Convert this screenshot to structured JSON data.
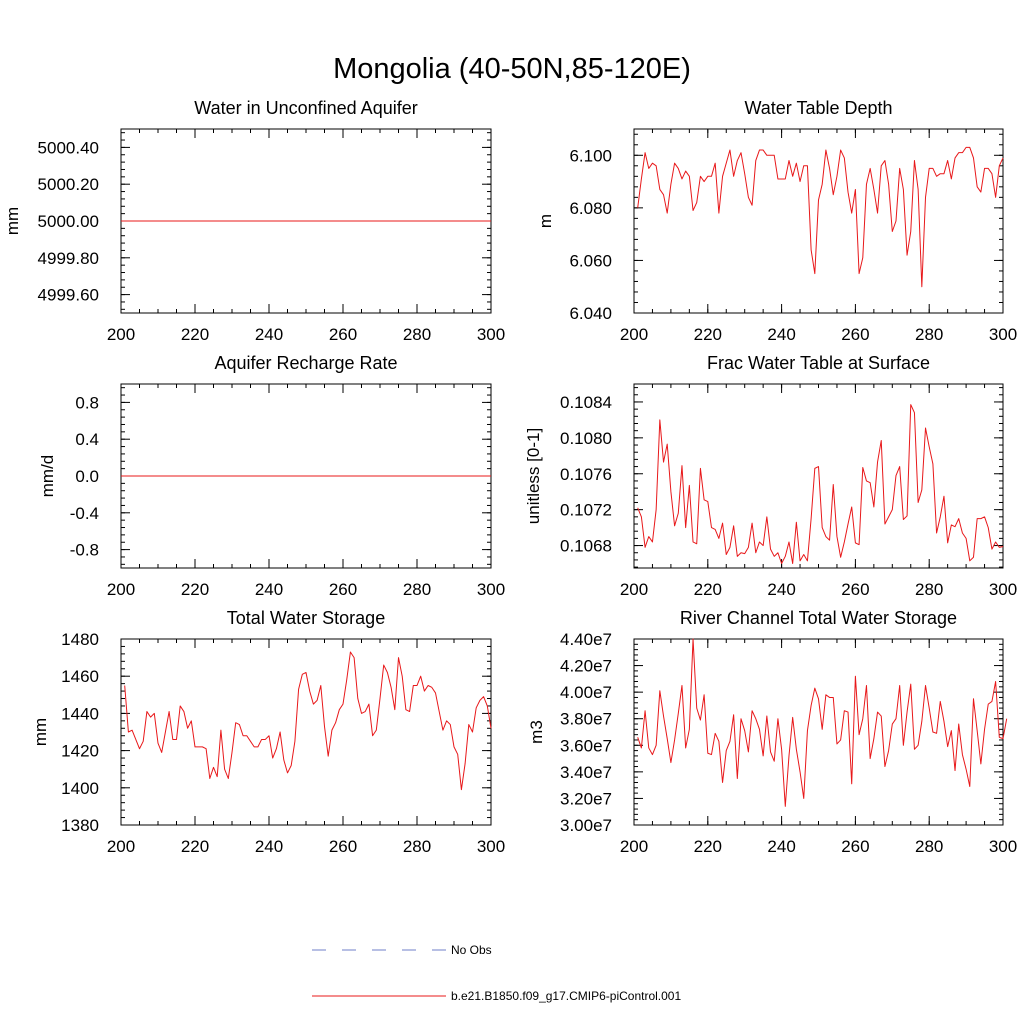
{
  "figure": {
    "title": "Mongolia (40-50N,85-120E)"
  },
  "legend": [
    {
      "label": "No Obs",
      "color": "#6f7fc9",
      "style": "dashed"
    },
    {
      "label": "b.e21.B1850.f09_g17.CMIP6-piControl.001",
      "color": "#e8181a",
      "style": "solid"
    }
  ],
  "chart_data": [
    {
      "type": "line",
      "title": "Water in Unconfined Aquifer",
      "xlabel": "",
      "ylabel": "mm",
      "xlim": [
        200,
        300
      ],
      "ylim": [
        4999.5,
        5000.5
      ],
      "xticks": [
        200,
        220,
        240,
        260,
        280,
        300
      ],
      "xtick_labels": [
        "200",
        "220",
        "240",
        "260",
        "280",
        "300"
      ],
      "yticks": [
        4999.6,
        4999.8,
        5000.0,
        5000.2,
        5000.4
      ],
      "ytick_labels": [
        "4999.60",
        "4999.80",
        "5000.00",
        "5000.20",
        "5000.40"
      ],
      "series": [
        {
          "name": "b.e21.B1850.f09_g17.CMIP6-piControl.001",
          "color": "#e8181a",
          "x": [
            200,
            300
          ],
          "values": [
            5000.0,
            5000.0
          ]
        }
      ]
    },
    {
      "type": "line",
      "title": "Water Table Depth",
      "xlabel": "",
      "ylabel": "m",
      "xlim": [
        200,
        300
      ],
      "ylim": [
        6.04,
        6.11
      ],
      "xticks": [
        200,
        220,
        240,
        260,
        280,
        300
      ],
      "xtick_labels": [
        "200",
        "220",
        "240",
        "260",
        "280",
        "300"
      ],
      "yticks": [
        6.04,
        6.06,
        6.08,
        6.1
      ],
      "ytick_labels": [
        "6.040",
        "6.060",
        "6.080",
        "6.100"
      ],
      "series": [
        {
          "name": "b.e21.B1850.f09_g17.CMIP6-piControl.001",
          "color": "#e8181a",
          "x_start": 201,
          "values": [
            6.08,
            6.091,
            6.101,
            6.095,
            6.097,
            6.096,
            6.087,
            6.085,
            6.078,
            6.089,
            6.097,
            6.095,
            6.091,
            6.094,
            6.092,
            6.079,
            6.082,
            6.092,
            6.09,
            6.092,
            6.092,
            6.097,
            6.078,
            6.092,
            6.097,
            6.102,
            6.092,
            6.098,
            6.101,
            6.093,
            6.084,
            6.081,
            6.098,
            6.102,
            6.102,
            6.1,
            6.1,
            6.1,
            6.091,
            6.091,
            6.091,
            6.098,
            6.092,
            6.097,
            6.09,
            6.096,
            6.096,
            6.064,
            6.055,
            6.083,
            6.089,
            6.102,
            6.095,
            6.085,
            6.092,
            6.102,
            6.099,
            6.086,
            6.078,
            6.087,
            6.055,
            6.061,
            6.089,
            6.095,
            6.087,
            6.078,
            6.096,
            6.098,
            6.089,
            6.071,
            6.075,
            6.095,
            6.087,
            6.062,
            6.071,
            6.098,
            6.087,
            6.05,
            6.084,
            6.095,
            6.095,
            6.092,
            6.093,
            6.093,
            6.098,
            6.091,
            6.099,
            6.101,
            6.101,
            6.103,
            6.103,
            6.099,
            6.088,
            6.086,
            6.095,
            6.095,
            6.093,
            6.084,
            6.096,
            6.099
          ]
        }
      ]
    },
    {
      "type": "line",
      "title": "Aquifer Recharge Rate",
      "xlabel": "",
      "ylabel": "mm/d",
      "xlim": [
        200,
        300
      ],
      "ylim": [
        -1.0,
        1.0
      ],
      "xticks": [
        200,
        220,
        240,
        260,
        280,
        300
      ],
      "xtick_labels": [
        "200",
        "220",
        "240",
        "260",
        "280",
        "300"
      ],
      "yticks": [
        -0.8,
        -0.4,
        0.0,
        0.4,
        0.8
      ],
      "ytick_labels": [
        "-0.8",
        "-0.4",
        "0.0",
        "0.4",
        "0.8"
      ],
      "series": [
        {
          "name": "b.e21.B1850.f09_g17.CMIP6-piControl.001",
          "color": "#e8181a",
          "x": [
            200,
            300
          ],
          "values": [
            0.0,
            0.0
          ]
        }
      ]
    },
    {
      "type": "line",
      "title": "Frac Water Table at Surface",
      "xlabel": "",
      "ylabel": "unitless [0-1]",
      "xlim": [
        200,
        300
      ],
      "ylim": [
        0.10655,
        0.1086
      ],
      "xticks": [
        200,
        220,
        240,
        260,
        280,
        300
      ],
      "xtick_labels": [
        "200",
        "220",
        "240",
        "260",
        "280",
        "300"
      ],
      "yticks": [
        0.1068,
        0.1072,
        0.1076,
        0.108,
        0.1084
      ],
      "ytick_labels": [
        "0.1068",
        "0.1072",
        "0.1076",
        "0.1080",
        "0.1084"
      ],
      "series": [
        {
          "name": "b.e21.B1850.f09_g17.CMIP6-piControl.001",
          "color": "#e8181a",
          "x_start": 201,
          "values": [
            0.10722,
            0.10712,
            0.10678,
            0.1069,
            0.10684,
            0.1072,
            0.1082,
            0.10773,
            0.10793,
            0.1074,
            0.10702,
            0.10716,
            0.10769,
            0.107,
            0.10747,
            0.10684,
            0.10682,
            0.10766,
            0.10731,
            0.10729,
            0.107,
            0.10698,
            0.10688,
            0.10705,
            0.1067,
            0.10678,
            0.10702,
            0.10668,
            0.10672,
            0.10671,
            0.10678,
            0.10705,
            0.10672,
            0.10684,
            0.1068,
            0.10712,
            0.10676,
            0.10668,
            0.10672,
            0.1066,
            0.10668,
            0.10684,
            0.1066,
            0.10706,
            0.10663,
            0.1067,
            0.10663,
            0.1071,
            0.10766,
            0.10768,
            0.107,
            0.1069,
            0.10686,
            0.10748,
            0.1069,
            0.10667,
            0.10684,
            0.10704,
            0.10723,
            0.10683,
            0.10681,
            0.10767,
            0.10752,
            0.1075,
            0.10723,
            0.10773,
            0.10797,
            0.10704,
            0.10712,
            0.1072,
            0.10758,
            0.10768,
            0.10709,
            0.10713,
            0.10837,
            0.10828,
            0.10728,
            0.10742,
            0.10811,
            0.1079,
            0.10771,
            0.10694,
            0.10712,
            0.10735,
            0.10683,
            0.10703,
            0.10701,
            0.1071,
            0.10694,
            0.10688,
            0.10663,
            0.10667,
            0.1071,
            0.1071,
            0.10712,
            0.107,
            0.10676,
            0.10684,
            0.10678,
            0.10679
          ]
        }
      ]
    },
    {
      "type": "line",
      "title": "Total Water Storage",
      "xlabel": "",
      "ylabel": "mm",
      "xlim": [
        200,
        300
      ],
      "ylim": [
        1380,
        1480
      ],
      "xticks": [
        200,
        220,
        240,
        260,
        280,
        300
      ],
      "xtick_labels": [
        "200",
        "220",
        "240",
        "260",
        "280",
        "300"
      ],
      "yticks": [
        1380,
        1400,
        1420,
        1440,
        1460,
        1480
      ],
      "ytick_labels": [
        "1380",
        "1400",
        "1420",
        "1440",
        "1460",
        "1480"
      ],
      "series": [
        {
          "name": "b.e21.B1850.f09_g17.CMIP6-piControl.001",
          "color": "#e8181a",
          "x_start": 201,
          "values": [
            1455,
            1430,
            1431,
            1426,
            1421,
            1425,
            1441,
            1438,
            1440,
            1424,
            1419,
            1430,
            1441,
            1426,
            1426,
            1444,
            1441,
            1432,
            1436,
            1422,
            1422,
            1422,
            1421,
            1405,
            1411,
            1406,
            1431,
            1410,
            1405,
            1419,
            1435,
            1434,
            1428,
            1428,
            1425,
            1422,
            1422,
            1426,
            1426,
            1428,
            1416,
            1421,
            1430,
            1415,
            1408,
            1412,
            1425,
            1453,
            1461,
            1462,
            1452,
            1445,
            1447,
            1455,
            1433,
            1417,
            1431,
            1435,
            1442,
            1445,
            1458,
            1473,
            1470,
            1448,
            1440,
            1441,
            1445,
            1428,
            1431,
            1448,
            1466,
            1462,
            1454,
            1442,
            1470,
            1460,
            1442,
            1441,
            1455,
            1455,
            1460,
            1452,
            1455,
            1454,
            1451,
            1441,
            1431,
            1436,
            1434,
            1422,
            1418,
            1399,
            1413,
            1434,
            1430,
            1443,
            1447,
            1449,
            1444,
            1432
          ]
        }
      ]
    },
    {
      "type": "line",
      "title": "River Channel Total Water Storage",
      "xlabel": "",
      "ylabel": "m3",
      "xlim": [
        200,
        300
      ],
      "ylim": [
        30000000.0,
        44000000.0
      ],
      "xticks": [
        200,
        220,
        240,
        260,
        280,
        300
      ],
      "xtick_labels": [
        "200",
        "220",
        "240",
        "260",
        "280",
        "300"
      ],
      "yticks": [
        30000000.0,
        32000000.0,
        34000000.0,
        36000000.0,
        38000000.0,
        40000000.0,
        42000000.0,
        44000000.0
      ],
      "ytick_labels": [
        "3.00e7",
        "3.20e7",
        "3.40e7",
        "3.60e7",
        "3.80e7",
        "4.00e7",
        "4.20e7",
        "4.40e7"
      ],
      "series": [
        {
          "name": "b.e21.B1850.f09_g17.CMIP6-piControl.001",
          "color": "#e8181a",
          "x_start": 201,
          "values": [
            36600000.0,
            35800000.0,
            38600000.0,
            35800000.0,
            35300000.0,
            36000000.0,
            40100000.0,
            38200000.0,
            36500000.0,
            34700000.0,
            36400000.0,
            38400000.0,
            40500000.0,
            35800000.0,
            37200000.0,
            44000000.0,
            38800000.0,
            37900000.0,
            39800000.0,
            35400000.0,
            35300000.0,
            36900000.0,
            36300000.0,
            33200000.0,
            35600000.0,
            36300000.0,
            38300000.0,
            33500000.0,
            38000000.0,
            37100000.0,
            35500000.0,
            38600000.0,
            38000000.0,
            37200000.0,
            35200000.0,
            38200000.0,
            35500000.0,
            34800000.0,
            38000000.0,
            35700000.0,
            31400000.0,
            35200000.0,
            38100000.0,
            35700000.0,
            34000000.0,
            32000000.0,
            37100000.0,
            39000000.0,
            40300000.0,
            39500000.0,
            37200000.0,
            39800000.0,
            39600000.0,
            39600000.0,
            36100000.0,
            36400000.0,
            38600000.0,
            38500000.0,
            33100000.0,
            41200000.0,
            36800000.0,
            38000000.0,
            40500000.0,
            35000000.0,
            36500000.0,
            38500000.0,
            38200000.0,
            34400000.0,
            35600000.0,
            37600000.0,
            38000000.0,
            40500000.0,
            36000000.0,
            38500000.0,
            40600000.0,
            35700000.0,
            36000000.0,
            37800000.0,
            40500000.0,
            38800000.0,
            37000000.0,
            36900000.0,
            39300000.0,
            37800000.0,
            35900000.0,
            37100000.0,
            34100000.0,
            37600000.0,
            35300000.0,
            34200000.0,
            32900000.0,
            39500000.0,
            37100000.0,
            34600000.0,
            37200000.0,
            39100000.0,
            39300000.0,
            40800000.0,
            36600000.0,
            36500000.0,
            38000000.0
          ]
        }
      ]
    }
  ]
}
